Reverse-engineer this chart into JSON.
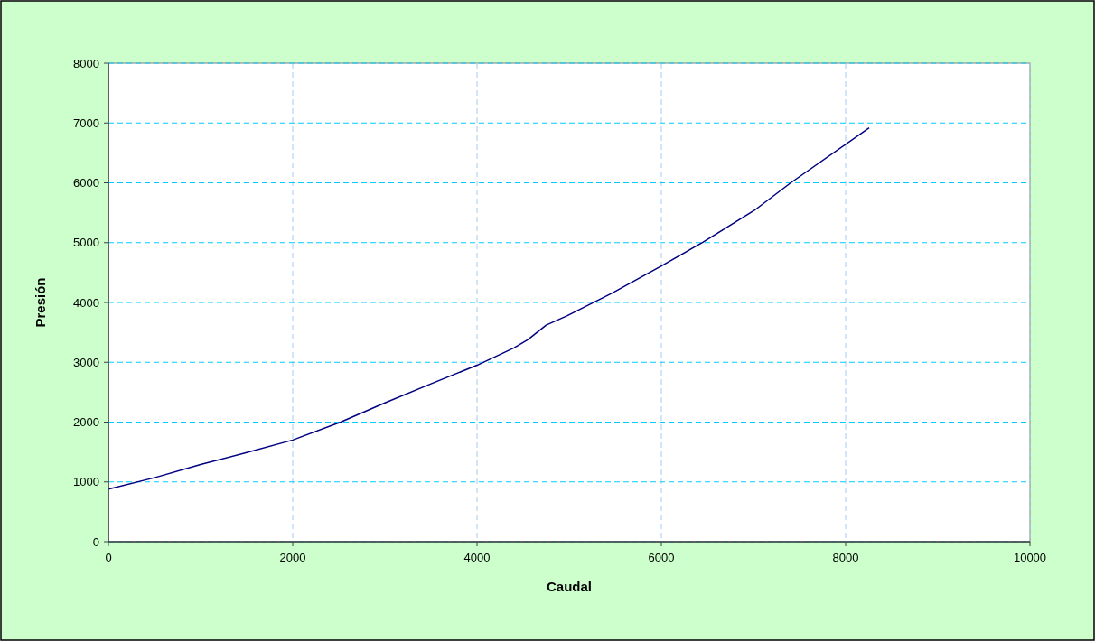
{
  "chart_data": {
    "type": "line",
    "xlabel": "Caudal",
    "ylabel": "Presión",
    "x": [
      0,
      500,
      1000,
      1500,
      2000,
      2520,
      3000,
      3500,
      4000,
      4400,
      4553,
      4750,
      4980,
      5471,
      6000,
      6454,
      7010,
      7404,
      8255
    ],
    "series": [
      {
        "color": "#000080",
        "values": [
          880,
          1070,
          1290,
          1490,
          1700,
          2000,
          2320,
          2640,
          2950,
          3240,
          3380,
          3620,
          3780,
          4160,
          4610,
          5010,
          5540,
          6000,
          6920
        ]
      }
    ],
    "xlim": [
      0,
      10000
    ],
    "xticks": [
      0,
      2000,
      4000,
      6000,
      8000,
      10000
    ],
    "ylim": [
      0,
      8000
    ],
    "yticks": [
      0,
      1000,
      2000,
      3000,
      4000,
      5000,
      6000,
      7000,
      8000
    ],
    "grid": true,
    "marker": "none",
    "line_style": "solid"
  }
}
